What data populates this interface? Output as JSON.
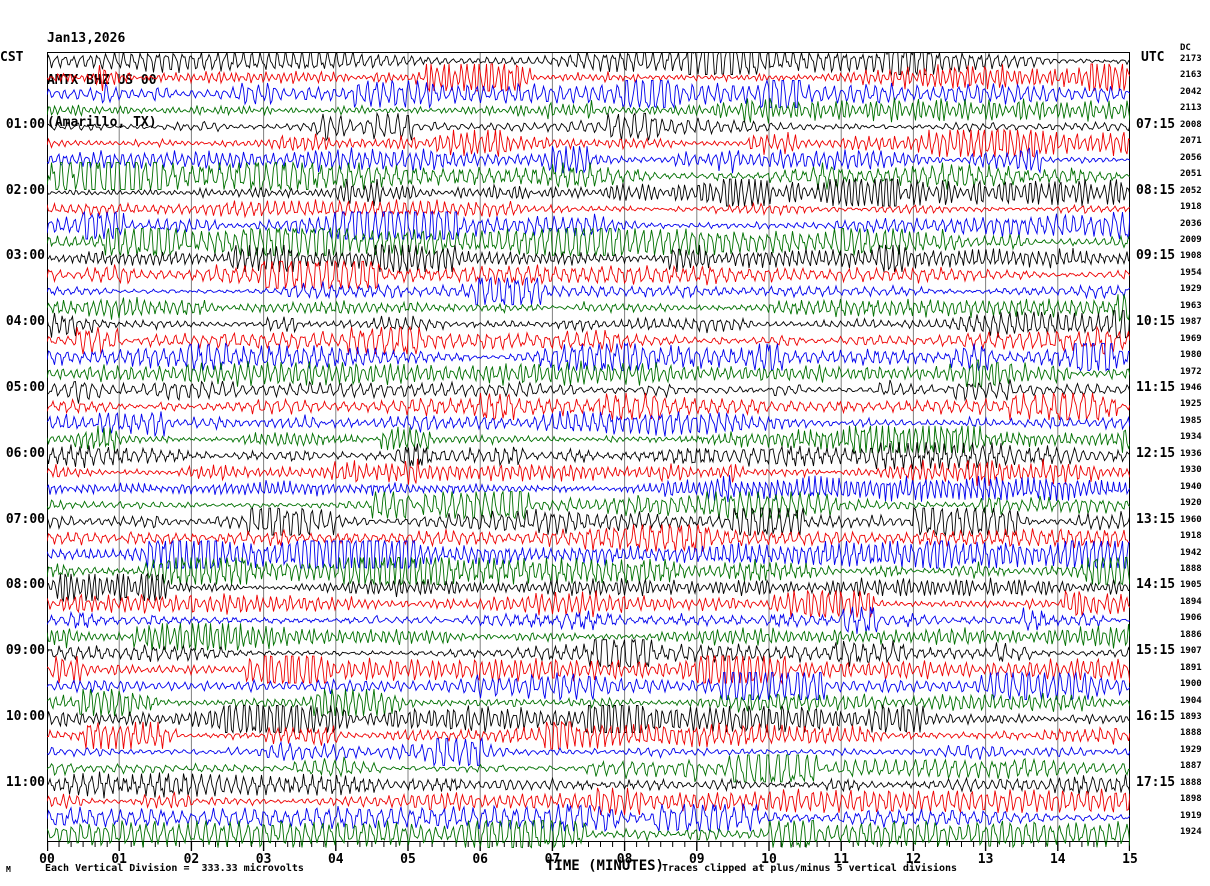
{
  "header": {
    "date": "Jan13,2026",
    "station": "AMTX BHZ US 00",
    "location": "(Amarillo, TX)"
  },
  "left_axis": {
    "header": "CST",
    "hour_labels": [
      "01:00",
      "02:00",
      "03:00",
      "04:00",
      "05:00",
      "06:00",
      "07:00",
      "08:00",
      "09:00",
      "10:00",
      "11:00"
    ]
  },
  "right_axis": {
    "header": "UTC",
    "hour_labels": [
      "07:15",
      "08:15",
      "09:15",
      "10:15",
      "11:15",
      "12:15",
      "13:15",
      "14:15",
      "15:15",
      "16:15",
      "17:15"
    ]
  },
  "dc_column": {
    "header": "DC",
    "values": [
      2173,
      2163,
      2042,
      2113,
      2008,
      2071,
      2056,
      2051,
      2052,
      1918,
      2036,
      2009,
      1908,
      1954,
      1929,
      1963,
      1987,
      1969,
      1980,
      1972,
      1946,
      1925,
      1985,
      1934,
      1936,
      1930,
      1940,
      1920,
      1960,
      1918,
      1942,
      1888,
      1905,
      1894,
      1906,
      1886,
      1907,
      1891,
      1900,
      1904,
      1893,
      1888,
      1929,
      1887,
      1888,
      1898,
      1919,
      1924
    ]
  },
  "x_axis": {
    "tick_labels": [
      "00",
      "01",
      "02",
      "03",
      "04",
      "05",
      "06",
      "07",
      "08",
      "09",
      "10",
      "11",
      "12",
      "13",
      "14",
      "15"
    ],
    "title": "TIME (MINUTES)"
  },
  "footer": {
    "corner_mark": "M",
    "scale_note": "Each Vertical Division =  333.33 microvolts",
    "clip_note": "Traces clipped at plus/minus 5 vertical divisions"
  },
  "colors": {
    "trace_cycle": [
      "#000000",
      "#ee0000",
      "#0000ee",
      "#007000"
    ],
    "grid": "#808080",
    "border": "#000000"
  },
  "chart_data": {
    "type": "line",
    "subtype": "seismogram-helicorder",
    "title": "AMTX BHZ US 00 (Amarillo, TX) Jan13,2026",
    "xlabel": "TIME (MINUTES)",
    "x_range_minutes": [
      0,
      15
    ],
    "minutes_per_row": 15,
    "row_count": 48,
    "rows_per_hour": 4,
    "left_time_zone": "CST",
    "right_time_zone": "UTC",
    "left_hour_labels": [
      "01:00",
      "02:00",
      "03:00",
      "04:00",
      "05:00",
      "06:00",
      "07:00",
      "08:00",
      "09:00",
      "10:00",
      "11:00"
    ],
    "right_hour_labels": [
      "07:15",
      "08:15",
      "09:15",
      "10:15",
      "11:15",
      "12:15",
      "13:15",
      "14:15",
      "15:15",
      "16:15",
      "17:15"
    ],
    "row_dc_offsets": [
      2173,
      2163,
      2042,
      2113,
      2008,
      2071,
      2056,
      2051,
      2052,
      1918,
      2036,
      2009,
      1908,
      1954,
      1929,
      1963,
      1987,
      1969,
      1980,
      1972,
      1946,
      1925,
      1985,
      1934,
      1936,
      1930,
      1940,
      1920,
      1960,
      1918,
      1942,
      1888,
      1905,
      1894,
      1906,
      1886,
      1907,
      1891,
      1900,
      1904,
      1893,
      1888,
      1929,
      1887,
      1888,
      1898,
      1919,
      1924
    ],
    "trace_color_cycle": [
      "#000000",
      "#ee0000",
      "#0000ee",
      "#007000"
    ],
    "vertical_division_microvolts": 333.33,
    "clip_divisions": 5,
    "grid": "vertical gridlines at each minute",
    "x_major_tick_minutes": 1,
    "x_minor_ticks_per_minute": 6
  }
}
